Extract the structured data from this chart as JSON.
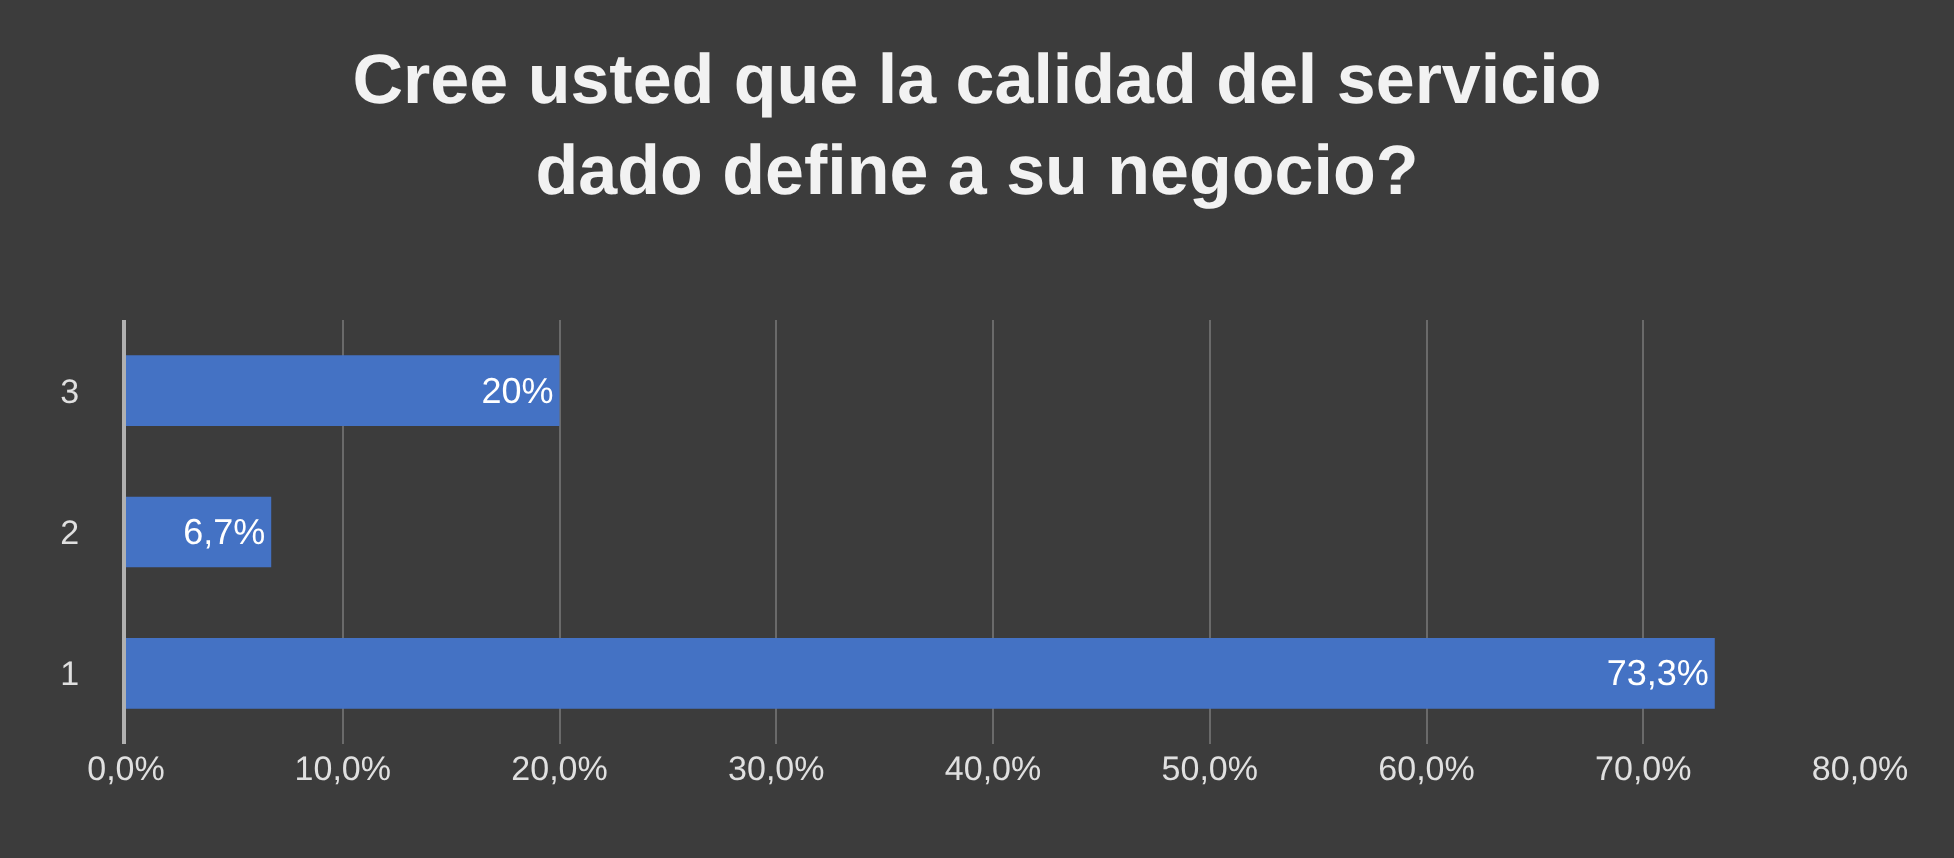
{
  "chart_data": {
    "type": "bar",
    "orientation": "horizontal",
    "title": "Cree usted que la calidad del servicio\ndado define a su negocio?",
    "categories": [
      "3",
      "2",
      "1"
    ],
    "values": [
      20,
      6.7,
      73.3
    ],
    "value_labels": [
      "20%",
      "6,7%",
      "73,3%"
    ],
    "color": "#4472c4",
    "xlim": [
      0,
      80
    ],
    "xticks": [
      {
        "value": 0,
        "label": "0,0%"
      },
      {
        "value": 10,
        "label": "10,0%"
      },
      {
        "value": 20,
        "label": "20,0%"
      },
      {
        "value": 30,
        "label": "30,0%"
      },
      {
        "value": 40,
        "label": "40,0%"
      },
      {
        "value": 50,
        "label": "50,0%"
      },
      {
        "value": 60,
        "label": "60,0%"
      },
      {
        "value": 70,
        "label": "70,0%"
      },
      {
        "value": 80,
        "label": "80,0%"
      }
    ],
    "grid": "x",
    "legend": false
  }
}
